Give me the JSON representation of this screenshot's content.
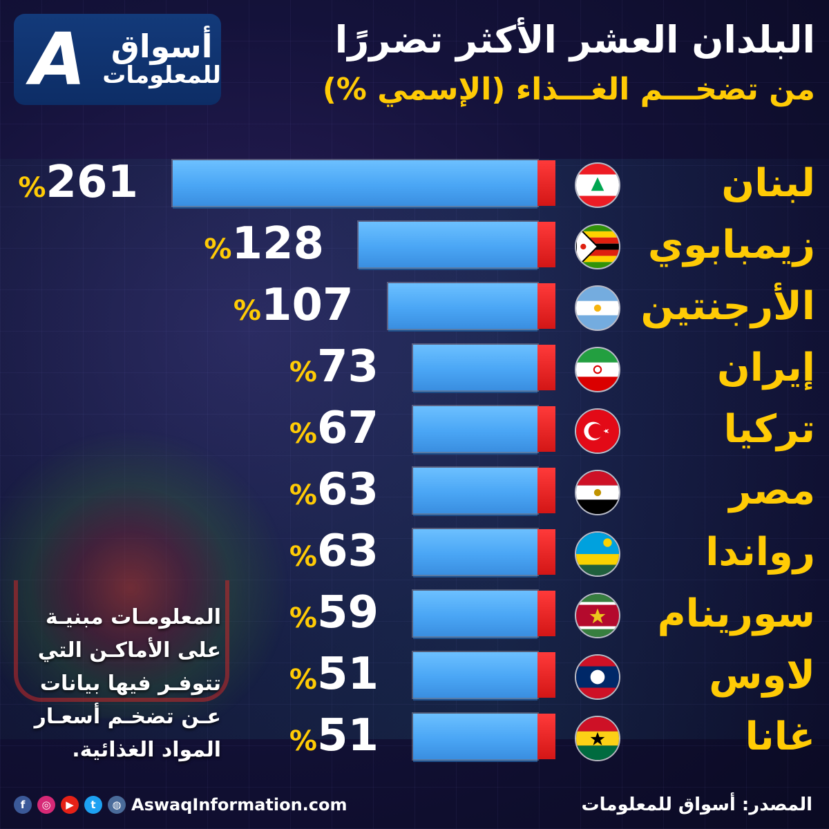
{
  "logo": {
    "line1": "أسواق",
    "line2": "للمعلومات",
    "mark": "A",
    "color": "#133a7a"
  },
  "header": {
    "title": "البلدان العشر الأكثر تضررًا",
    "subtitle": "من تضخـــم الغـــذاء (الإسمي %)"
  },
  "note": "المعلومـات مبنيـة على الأماكـن التي تتوفـر فيها بيانات عـن تضخـم أسعـار المواد الغذائية.",
  "footer": {
    "website": "AswaqInformation.com",
    "source": "المصدر: أسواق للمعلومات",
    "social_icons": [
      "facebook-icon",
      "instagram-icon",
      "youtube-icon",
      "twitter-icon",
      "globe-icon"
    ]
  },
  "colors": {
    "bar": "#4aa6f5",
    "bar_end": "#e01e1e",
    "accent": "#ffcb05"
  },
  "chart_data": {
    "type": "bar",
    "orientation": "horizontal",
    "title": "البلدان العشر الأكثر تضررًا",
    "subtitle": "من تضخـــم الغـــذاء (الإسمي %)",
    "unit": "%",
    "categories": [
      "لبنان",
      "زيمبابوي",
      "الأرجنتين",
      "إيران",
      "تركيا",
      "مصر",
      "رواندا",
      "سورينام",
      "لاوس",
      "غانا"
    ],
    "values": [
      261,
      128,
      107,
      73,
      67,
      63,
      63,
      59,
      51,
      51
    ],
    "flags": [
      "lebanon-flag",
      "zimbabwe-flag",
      "argentina-flag",
      "iran-flag",
      "turkey-flag",
      "egypt-flag",
      "rwanda-flag",
      "suriname-flag",
      "laos-flag",
      "ghana-flag"
    ],
    "grid": false,
    "legend": "none"
  }
}
